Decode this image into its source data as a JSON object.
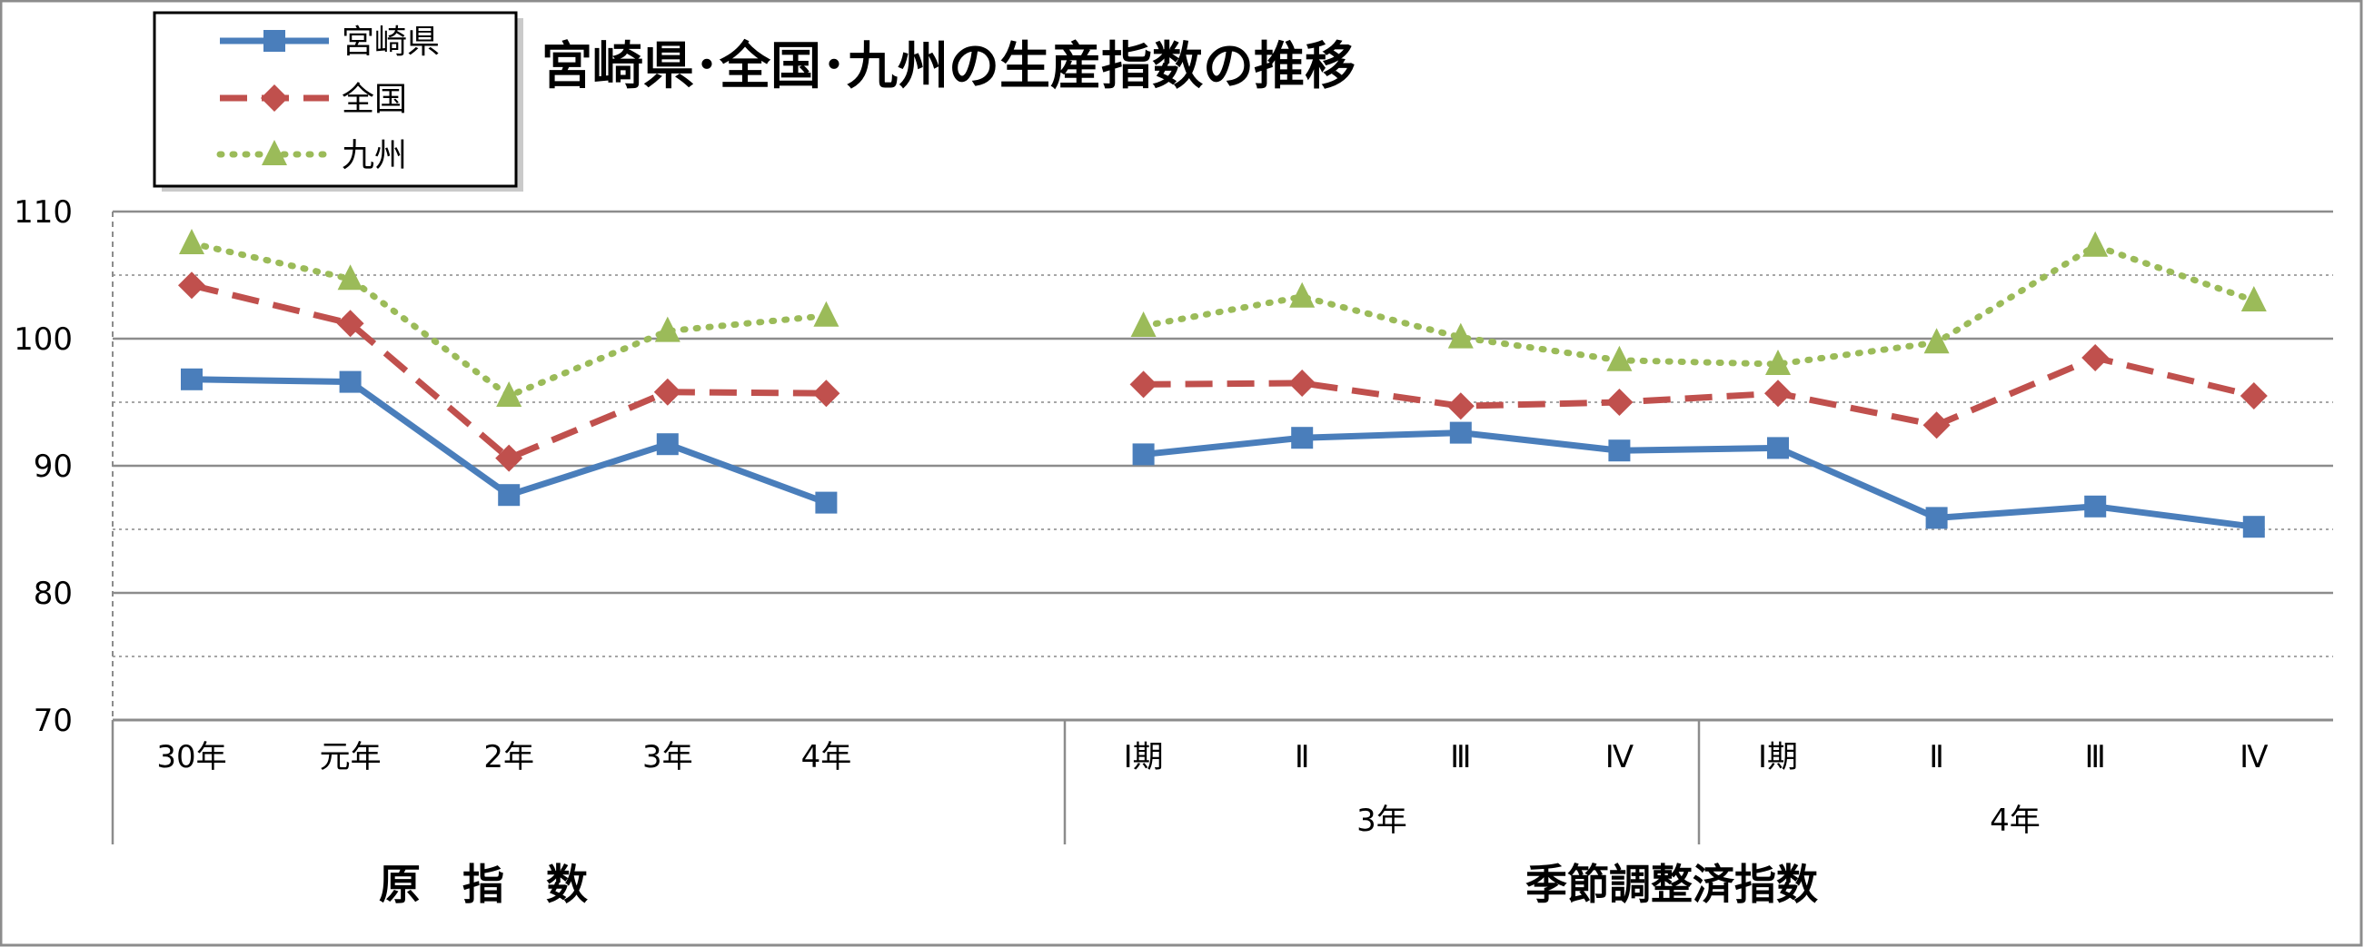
{
  "chart_data": {
    "type": "line",
    "title": "宮崎県･全国･九州の生産指数の推移",
    "ylim": [
      70,
      110
    ],
    "yticks": [
      70,
      80,
      90,
      100,
      110
    ],
    "grid": true,
    "legend_position": "top-left",
    "categories": [
      "30年",
      "元年",
      "2年",
      "3年",
      "4年",
      "",
      "Ⅰ期",
      "Ⅱ",
      "Ⅲ",
      "Ⅳ",
      "Ⅰ期",
      "Ⅱ",
      "Ⅲ",
      "Ⅳ"
    ],
    "groups": [
      {
        "label": "3年",
        "categories": [
          "Ⅰ期",
          "Ⅱ",
          "Ⅲ",
          "Ⅳ"
        ]
      },
      {
        "label": "4年",
        "categories": [
          "Ⅰ期",
          "Ⅱ",
          "Ⅲ",
          "Ⅳ"
        ]
      }
    ],
    "sections": [
      {
        "label": "原　指　数"
      },
      {
        "label": "季節調整済指数"
      }
    ],
    "series": [
      {
        "name": "宮崎県",
        "color": "#4A7EBB",
        "marker": "square",
        "line_style": "solid",
        "values": [
          96.8,
          96.6,
          87.7,
          91.7,
          87.1,
          null,
          90.9,
          92.2,
          92.6,
          91.2,
          91.4,
          85.9,
          86.8,
          85.2
        ]
      },
      {
        "name": "全国",
        "color": "#C0504D",
        "marker": "diamond",
        "line_style": "dashed",
        "values": [
          104.2,
          101.2,
          90.6,
          95.8,
          95.7,
          null,
          96.4,
          96.5,
          94.7,
          95.0,
          95.7,
          93.2,
          98.5,
          95.5
        ]
      },
      {
        "name": "九州",
        "color": "#9BBB59",
        "marker": "triangle",
        "line_style": "dotted",
        "values": [
          107.5,
          104.7,
          95.5,
          100.6,
          101.8,
          null,
          101.0,
          103.3,
          100.1,
          98.3,
          98.0,
          99.7,
          107.3,
          103.0
        ]
      }
    ]
  }
}
